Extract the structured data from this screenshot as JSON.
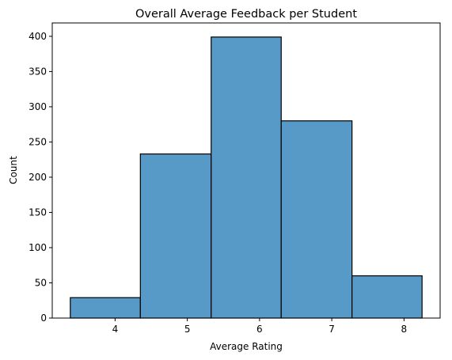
{
  "chart_data": {
    "type": "bar",
    "title": "Overall Average Feedback per Student",
    "xlabel": "Average Rating",
    "ylabel": "Count",
    "bins": [
      {
        "x0": 3.38,
        "x1": 4.35,
        "value": 29
      },
      {
        "x0": 4.35,
        "x1": 5.33,
        "value": 233
      },
      {
        "x0": 5.33,
        "x1": 6.3,
        "value": 399
      },
      {
        "x0": 6.3,
        "x1": 7.28,
        "value": 280
      },
      {
        "x0": 7.28,
        "x1": 8.25,
        "value": 60
      }
    ],
    "xlim": [
      3.13,
      8.5
    ],
    "ylim": [
      0,
      419
    ],
    "xticks": [
      4,
      5,
      6,
      7,
      8
    ],
    "yticks": [
      0,
      50,
      100,
      150,
      200,
      250,
      300,
      350,
      400
    ],
    "bar_color": "#5799c7",
    "edge_color": "#000000",
    "grid": false
  }
}
